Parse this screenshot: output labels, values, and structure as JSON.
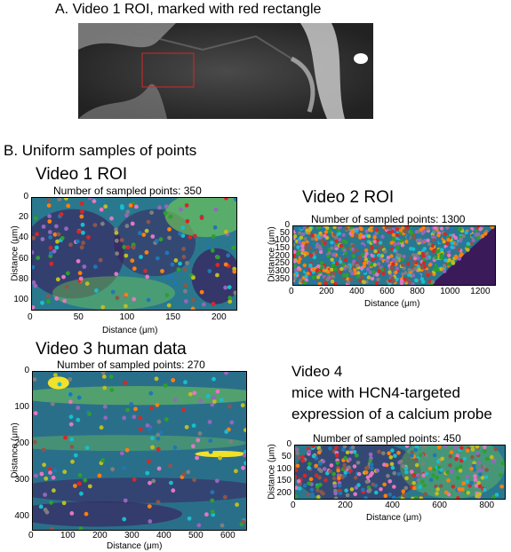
{
  "section_a": {
    "heading": "A.   Video 1 ROI, marked with red rectangle"
  },
  "section_b": {
    "heading": "B. Uniform samples of points"
  },
  "panels": {
    "v1": {
      "label": "Video 1 ROI",
      "subtitle": "Number of sampled points: 350",
      "xlabel": "Distance (μm)",
      "ylabel": "Distance (μm)",
      "xticks": [
        "0",
        "50",
        "100",
        "150",
        "200"
      ],
      "yticks": [
        "0",
        "20",
        "40",
        "60",
        "80",
        "100"
      ]
    },
    "v2": {
      "label": "Video 2 ROI",
      "subtitle": "Number of sampled points: 1300",
      "xlabel": "Distance (μm)",
      "ylabel": "Distance (μm)",
      "xticks": [
        "0",
        "200",
        "400",
        "600",
        "800",
        "1000",
        "1200"
      ],
      "yticks": [
        "0",
        "50",
        "100",
        "150",
        "200",
        "250",
        "300",
        "350"
      ]
    },
    "v3": {
      "label": "Video 3 human data",
      "subtitle": "Number of sampled points: 270",
      "xlabel": "Distance (μm)",
      "ylabel": "Distance (μm)",
      "xticks": [
        "0",
        "100",
        "200",
        "300",
        "400",
        "500",
        "600"
      ],
      "yticks": [
        "0",
        "100",
        "200",
        "300",
        "400"
      ]
    },
    "v4": {
      "label_line1": "Video 4",
      "label_line2": "mice with HCN4-targeted",
      "label_line3": "expression of a calcium probe",
      "subtitle": "Number of sampled points: 450",
      "xlabel": "Distance (μm)",
      "ylabel": "Distance (μm)",
      "xticks": [
        "0",
        "200",
        "400",
        "600",
        "800"
      ],
      "yticks": [
        "0",
        "50",
        "100",
        "150",
        "200"
      ]
    }
  },
  "colors": {
    "roi_marker": "#d62728",
    "heatmap_dark": "#3b1a5a",
    "heatmap_mid": "#2a788e",
    "heatmap_light": "#7ad151",
    "heatmap_bright": "#fde725"
  }
}
